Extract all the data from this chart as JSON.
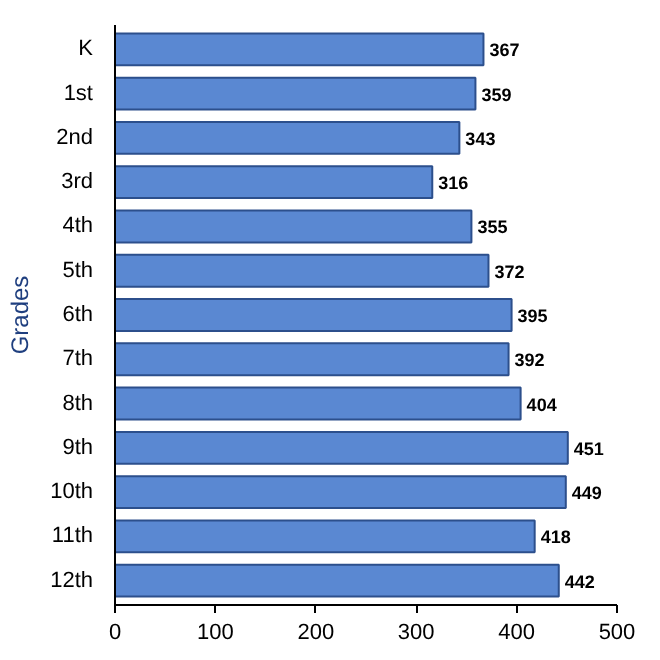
{
  "chart_data": {
    "type": "bar",
    "orientation": "horizontal",
    "ylabel": "Grades",
    "categories": [
      "K",
      "1st",
      "2nd",
      "3rd",
      "4th",
      "5th",
      "6th",
      "7th",
      "8th",
      "9th",
      "10th",
      "11th",
      "12th"
    ],
    "values": [
      367,
      359,
      343,
      316,
      355,
      372,
      395,
      392,
      404,
      451,
      449,
      418,
      442
    ],
    "color": "#5a88d2",
    "xlim": [
      0,
      500
    ],
    "xticks": [
      0,
      100,
      200,
      300,
      400,
      500
    ],
    "data_labels": true,
    "grid": false
  }
}
